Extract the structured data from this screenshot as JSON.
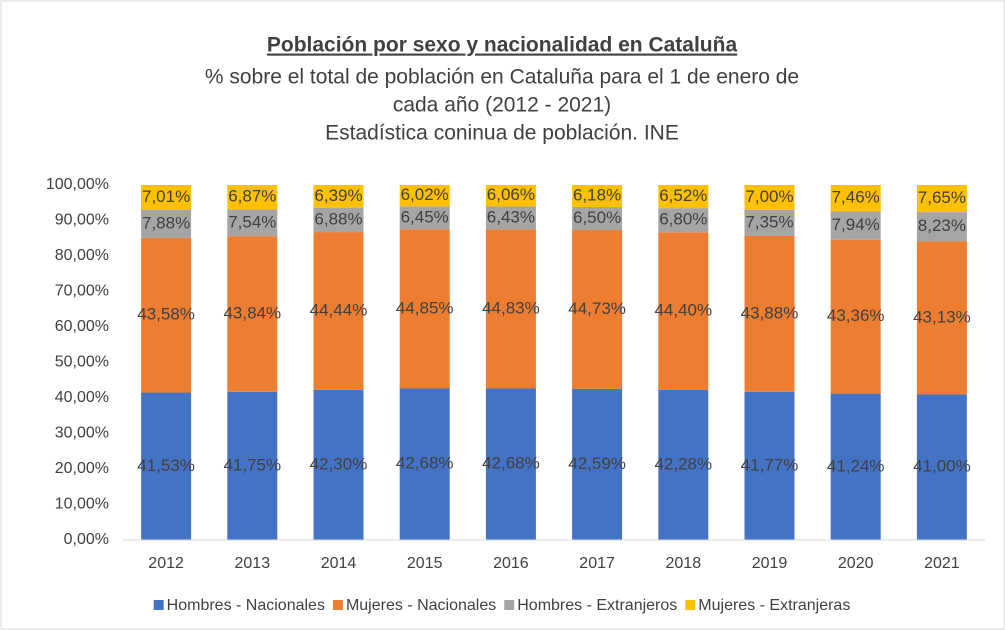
{
  "chart_data": {
    "type": "stacked_bar",
    "title": "Población por sexo y nacionalidad en Cataluña",
    "subtitle": [
      "% sobre el total de población en Cataluña para el 1 de enero de",
      "cada año (2012 - 2021)",
      "Estadística coninua de población. INE"
    ],
    "categories": [
      "2012",
      "2013",
      "2014",
      "2015",
      "2016",
      "2017",
      "2018",
      "2019",
      "2020",
      "2021"
    ],
    "series": [
      {
        "name": "Hombres - Nacionales",
        "color": "#4472c4",
        "values": [
          41.53,
          41.75,
          42.3,
          42.68,
          42.68,
          42.59,
          42.28,
          41.77,
          41.24,
          41.0
        ],
        "value_labels": [
          "41,53%",
          "41,75%",
          "42,30%",
          "42,68%",
          "42,68%",
          "42,59%",
          "42,28%",
          "41,77%",
          "41,24%",
          "41,00%"
        ]
      },
      {
        "name": "Mujeres - Nacionales",
        "color": "#ed7d31",
        "values": [
          43.58,
          43.84,
          44.44,
          44.85,
          44.83,
          44.73,
          44.4,
          43.88,
          43.36,
          43.13
        ],
        "value_labels": [
          "43,58%",
          "43,84%",
          "44,44%",
          "44,85%",
          "44,83%",
          "44,73%",
          "44,40%",
          "43,88%",
          "43,36%",
          "43,13%"
        ]
      },
      {
        "name": "Hombres - Extranjeros",
        "color": "#a5a5a5",
        "values": [
          7.88,
          7.54,
          6.88,
          6.45,
          6.43,
          6.5,
          6.8,
          7.35,
          7.94,
          8.23
        ],
        "value_labels": [
          "7,88%",
          "7,54%",
          "6,88%",
          "6,45%",
          "6,43%",
          "6,50%",
          "6,80%",
          "7,35%",
          "7,94%",
          "8,23%"
        ]
      },
      {
        "name": "Mujeres - Extranjeras",
        "color": "#ffc000",
        "values": [
          7.01,
          6.87,
          6.39,
          6.02,
          6.06,
          6.18,
          6.52,
          7.0,
          7.46,
          7.65
        ],
        "value_labels": [
          "7,01%",
          "6,87%",
          "6,39%",
          "6,02%",
          "6,06%",
          "6,18%",
          "6,52%",
          "7,00%",
          "7,46%",
          "7,65%"
        ]
      }
    ],
    "ylim": [
      0,
      100
    ],
    "yticks": [
      {
        "value": 0,
        "label": "0,00%"
      },
      {
        "value": 10,
        "label": "10,00%"
      },
      {
        "value": 20,
        "label": "20,00%"
      },
      {
        "value": 30,
        "label": "30,00%"
      },
      {
        "value": 40,
        "label": "40,00%"
      },
      {
        "value": 50,
        "label": "50,00%"
      },
      {
        "value": 60,
        "label": "60,00%"
      },
      {
        "value": 70,
        "label": "70,00%"
      },
      {
        "value": 80,
        "label": "80,00%"
      },
      {
        "value": 90,
        "label": "90,00%"
      },
      {
        "value": 100,
        "label": "100,00%"
      }
    ],
    "grid": false,
    "legend": "bottom"
  }
}
